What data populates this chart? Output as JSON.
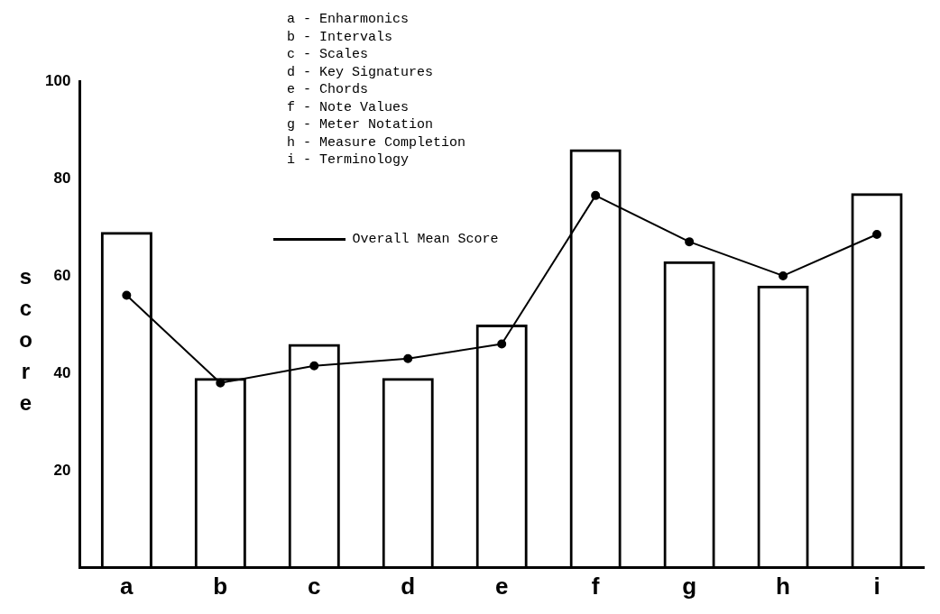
{
  "chart_data": {
    "type": "bar",
    "ylabel": "score",
    "categories": [
      "a",
      "b",
      "c",
      "d",
      "e",
      "f",
      "g",
      "h",
      "i"
    ],
    "series": [
      {
        "color": "#000000",
        "values": [
          69,
          39,
          46,
          39,
          50,
          86,
          63,
          58,
          77
        ]
      },
      {
        "type": "line",
        "name": "Overall Mean Score",
        "color": "#000000",
        "marker": "circle",
        "line_style": "solid",
        "values": [
          56,
          38,
          41.5,
          43,
          46,
          76.5,
          67,
          60,
          68.5
        ]
      }
    ],
    "ylim": [
      0,
      100
    ],
    "yticks": [
      20,
      40,
      60,
      80,
      100
    ],
    "grid": false,
    "legend": "top left",
    "annotations": [
      "a - Enharmonics",
      "b - Intervals",
      "c - Scales",
      "d - Key Signatures",
      "e - Chords",
      "f - Note Values",
      "g - Meter Notation",
      "h - Measure Completion",
      "i - Terminology"
    ]
  }
}
